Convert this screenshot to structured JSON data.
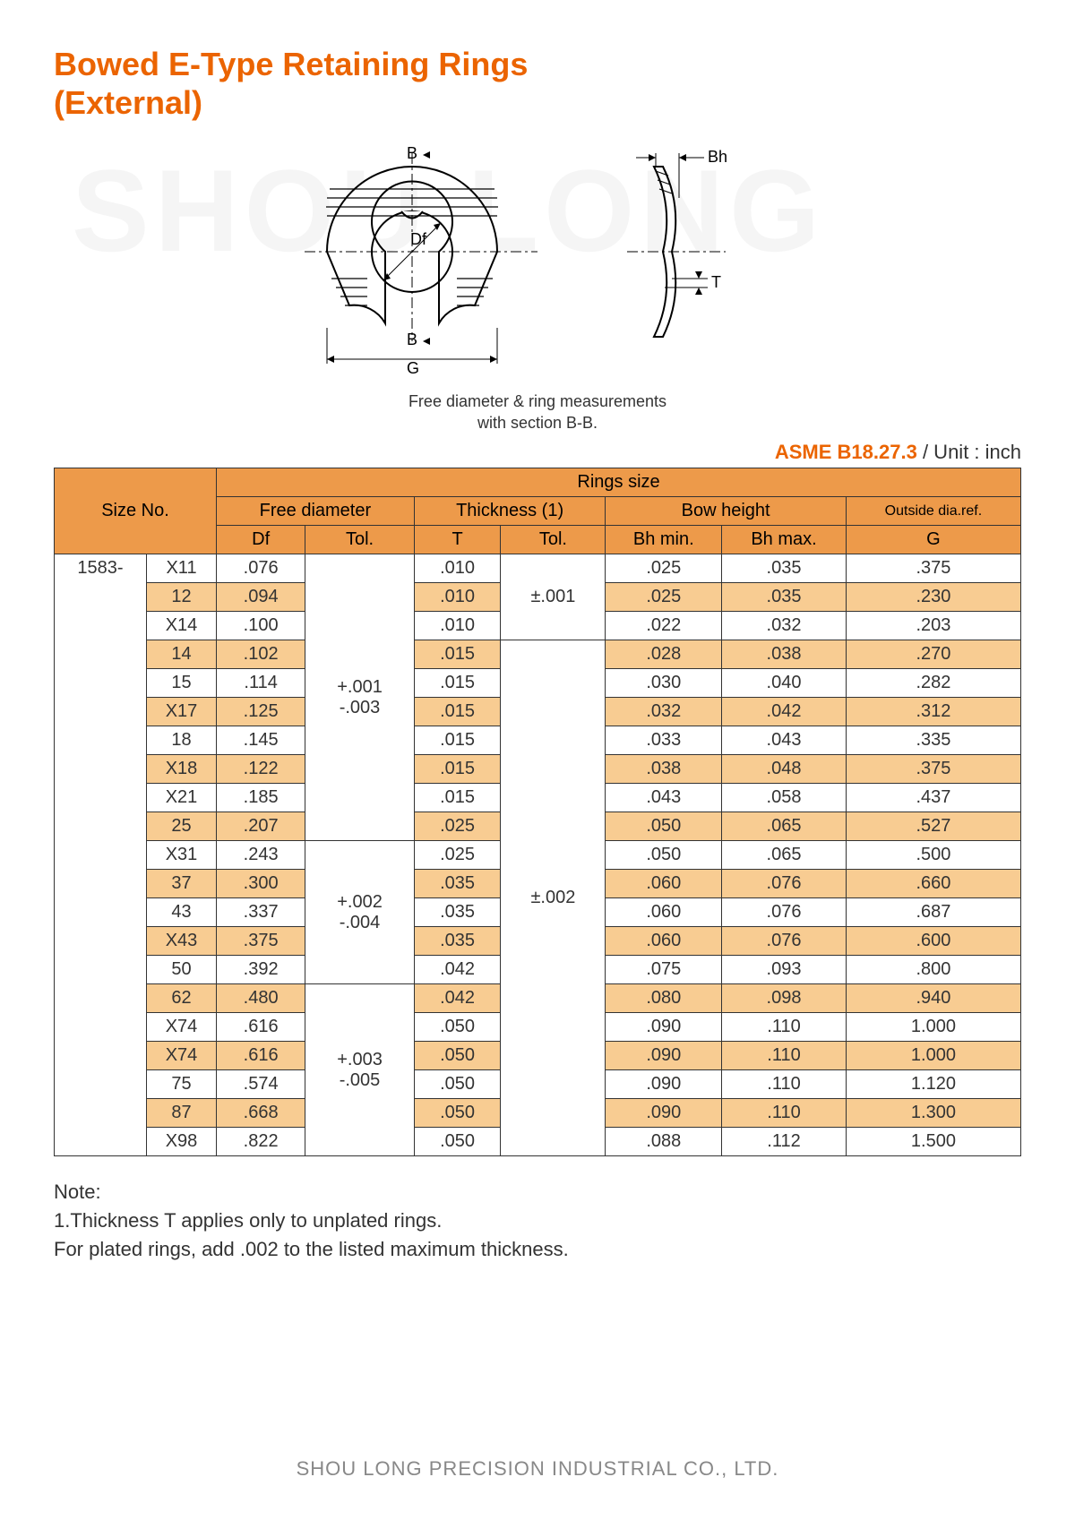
{
  "title_line1": "Bowed E-Type Retaining Rings",
  "title_line2": "(External)",
  "watermark": "SHOU LONG",
  "diagram": {
    "labels": {
      "B": "B",
      "Bh": "Bh",
      "Df": "Df",
      "G": "G",
      "T": "T"
    },
    "caption_line1": "Free diameter & ring measurements",
    "caption_line2": "with section B-B."
  },
  "spec_code": "ASME B18.27.3",
  "spec_unit": " / Unit : inch",
  "headers": {
    "size_no": "Size No.",
    "rings_size": "Rings size",
    "free_diameter": "Free diameter",
    "thickness": "Thickness (1)",
    "bow_height": "Bow height",
    "outside": "Outside dia.ref.",
    "Df": "Df",
    "Tol1": "Tol.",
    "T": "T",
    "Tol2": "Tol.",
    "Bhmin": "Bh min.",
    "Bhmax": "Bh max.",
    "G": "G"
  },
  "prefix": "1583-",
  "tol_groups": {
    "df1": "+.001\n-.003",
    "df2": "+.002\n-.004",
    "df3": "+.003\n-.005",
    "t1": "±.001",
    "t2": "±.002"
  },
  "rows": [
    {
      "no": "X11",
      "df": ".076",
      "t": ".010",
      "bhmin": ".025",
      "bhmax": ".035",
      "g": ".375"
    },
    {
      "no": "12",
      "df": ".094",
      "t": ".010",
      "bhmin": ".025",
      "bhmax": ".035",
      "g": ".230"
    },
    {
      "no": "X14",
      "df": ".100",
      "t": ".010",
      "bhmin": ".022",
      "bhmax": ".032",
      "g": ".203"
    },
    {
      "no": "14",
      "df": ".102",
      "t": ".015",
      "bhmin": ".028",
      "bhmax": ".038",
      "g": ".270"
    },
    {
      "no": "15",
      "df": ".114",
      "t": ".015",
      "bhmin": ".030",
      "bhmax": ".040",
      "g": ".282"
    },
    {
      "no": "X17",
      "df": ".125",
      "t": ".015",
      "bhmin": ".032",
      "bhmax": ".042",
      "g": ".312"
    },
    {
      "no": "18",
      "df": ".145",
      "t": ".015",
      "bhmin": ".033",
      "bhmax": ".043",
      "g": ".335"
    },
    {
      "no": "X18",
      "df": ".122",
      "t": ".015",
      "bhmin": ".038",
      "bhmax": ".048",
      "g": ".375"
    },
    {
      "no": "X21",
      "df": ".185",
      "t": ".015",
      "bhmin": ".043",
      "bhmax": ".058",
      "g": ".437"
    },
    {
      "no": "25",
      "df": ".207",
      "t": ".025",
      "bhmin": ".050",
      "bhmax": ".065",
      "g": ".527"
    },
    {
      "no": "X31",
      "df": ".243",
      "t": ".025",
      "bhmin": ".050",
      "bhmax": ".065",
      "g": ".500"
    },
    {
      "no": "37",
      "df": ".300",
      "t": ".035",
      "bhmin": ".060",
      "bhmax": ".076",
      "g": ".660"
    },
    {
      "no": "43",
      "df": ".337",
      "t": ".035",
      "bhmin": ".060",
      "bhmax": ".076",
      "g": ".687"
    },
    {
      "no": "X43",
      "df": ".375",
      "t": ".035",
      "bhmin": ".060",
      "bhmax": ".076",
      "g": ".600"
    },
    {
      "no": "50",
      "df": ".392",
      "t": ".042",
      "bhmin": ".075",
      "bhmax": ".093",
      "g": ".800"
    },
    {
      "no": "62",
      "df": ".480",
      "t": ".042",
      "bhmin": ".080",
      "bhmax": ".098",
      "g": ".940"
    },
    {
      "no": "X74",
      "df": ".616",
      "t": ".050",
      "bhmin": ".090",
      "bhmax": ".110",
      "g": "1.000"
    },
    {
      "no": "X74",
      "df": ".616",
      "t": ".050",
      "bhmin": ".090",
      "bhmax": ".110",
      "g": "1.000"
    },
    {
      "no": "75",
      "df": ".574",
      "t": ".050",
      "bhmin": ".090",
      "bhmax": ".110",
      "g": "1.120"
    },
    {
      "no": "87",
      "df": ".668",
      "t": ".050",
      "bhmin": ".090",
      "bhmax": ".110",
      "g": "1.300"
    },
    {
      "no": "X98",
      "df": ".822",
      "t": ".050",
      "bhmin": ".088",
      "bhmax": ".112",
      "g": "1.500"
    }
  ],
  "note": {
    "head": "Note:",
    "line1": "1.Thickness T applies only to unplated rings.",
    "line2": "For plated rings, add .002 to the listed maximum thickness."
  },
  "footer": "SHOU LONG PRECISION INDUSTRIAL CO., LTD.",
  "colors": {
    "accent": "#eb6400",
    "header_bg": "#ed9a4a",
    "alt_row": "#f8cc92",
    "border": "#333333",
    "watermark": "#f5f5f5",
    "footer": "#888888"
  }
}
